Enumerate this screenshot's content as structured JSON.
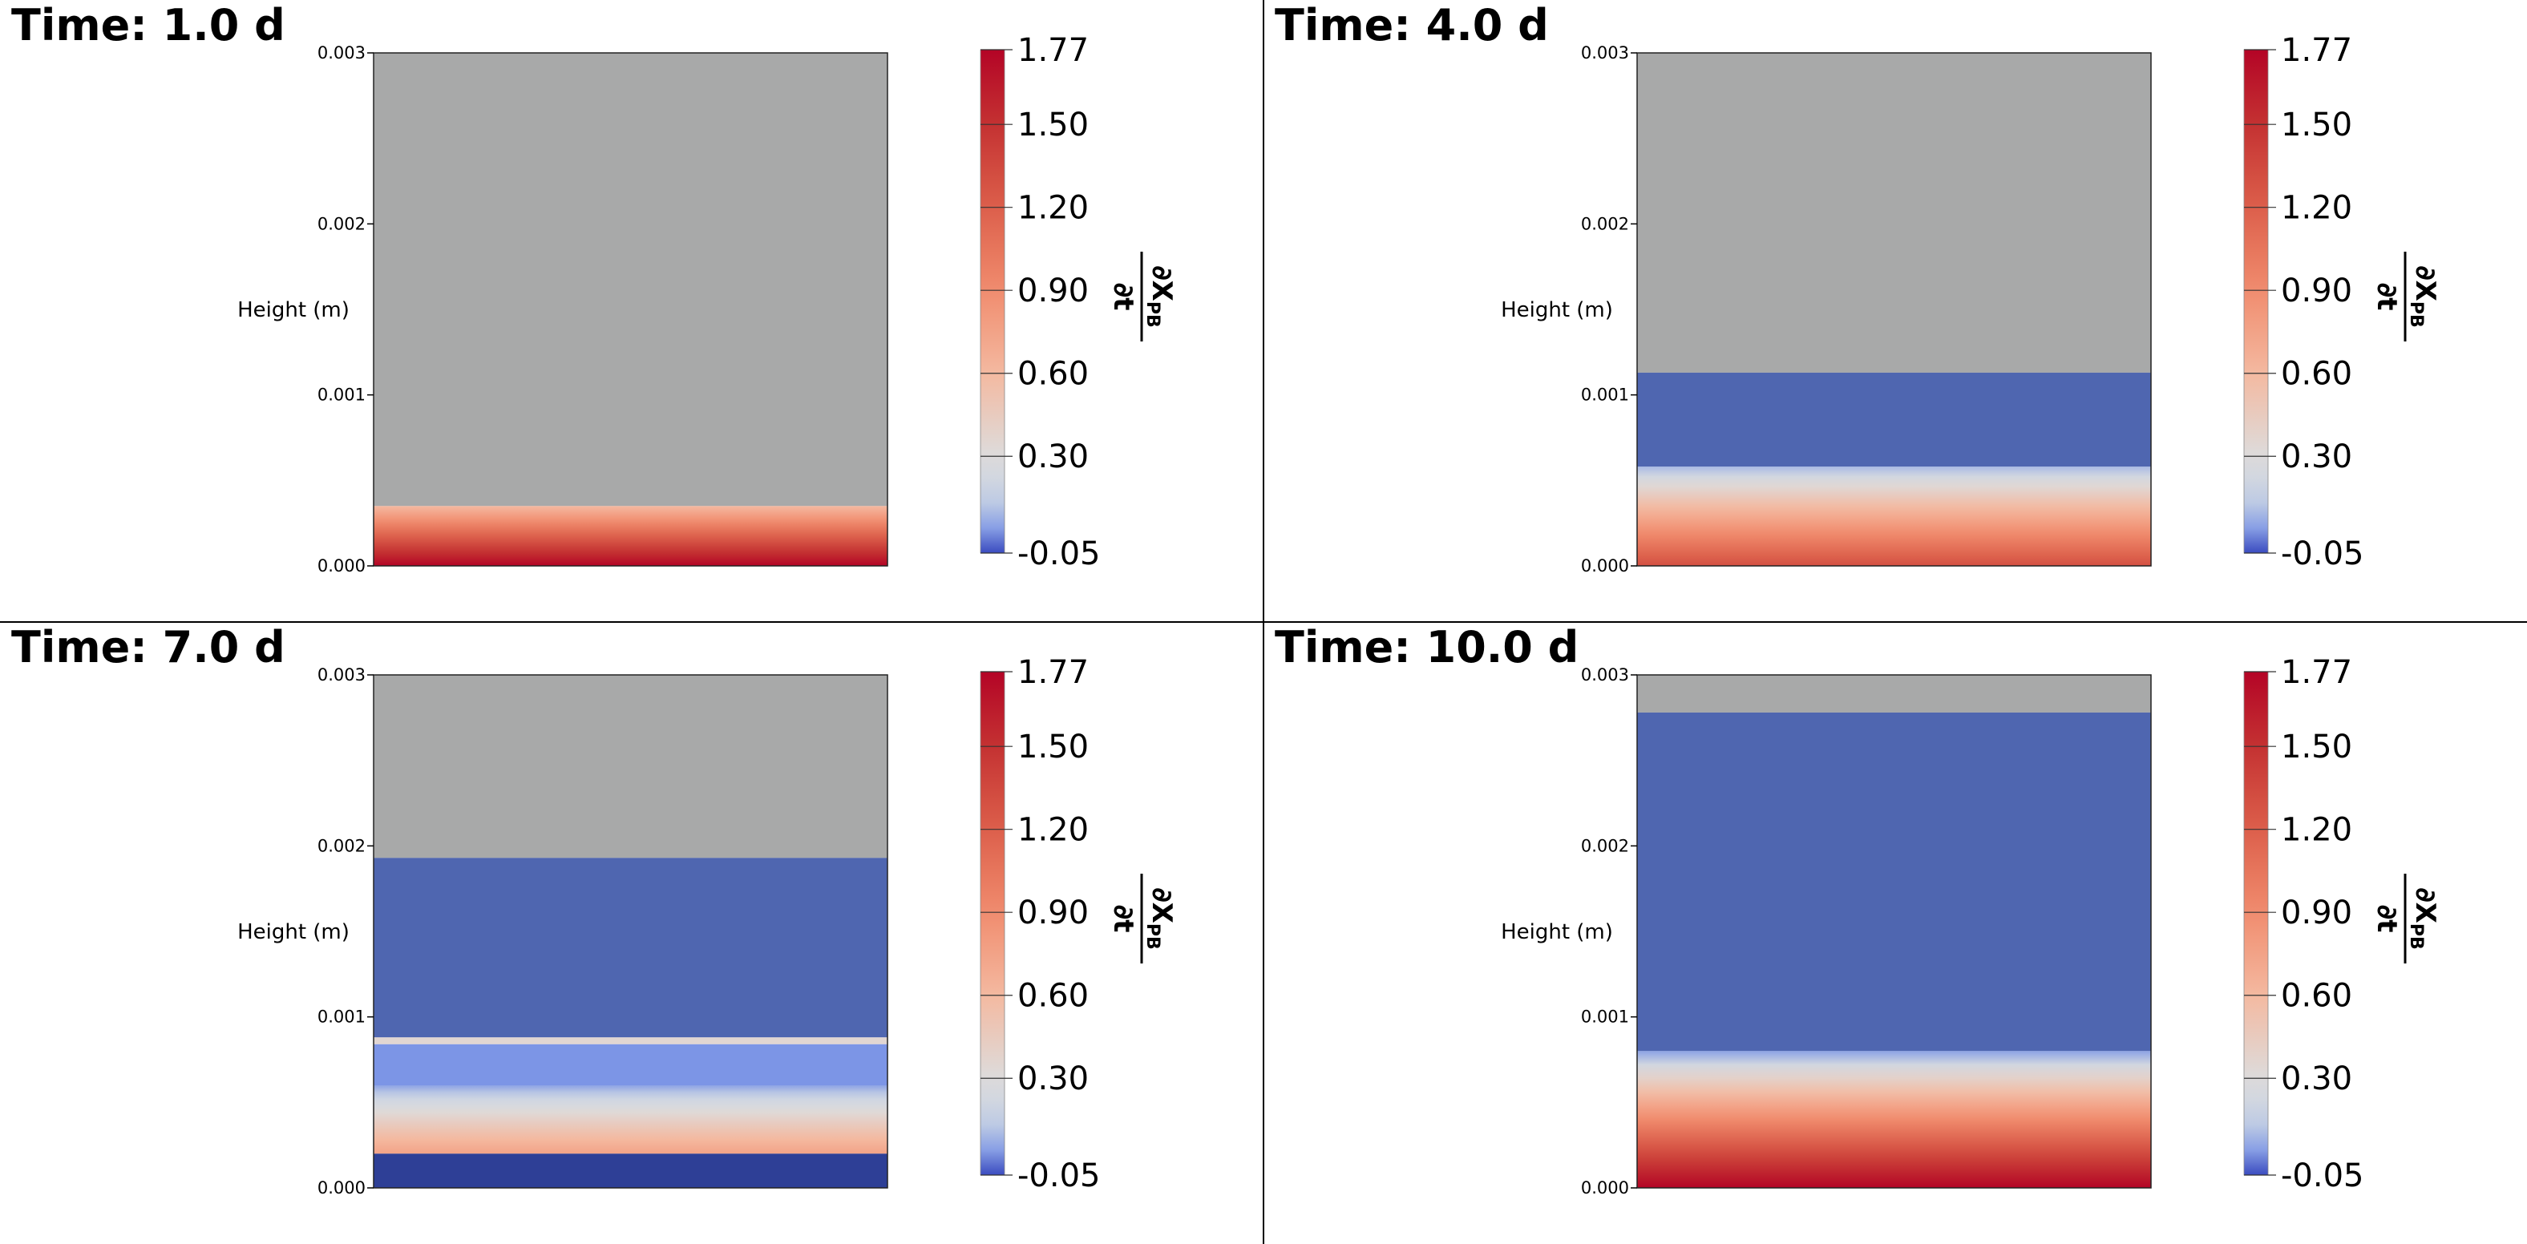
{
  "panels": [
    {
      "title": "Time: 1.0 d",
      "chart_data": {
        "type": "heatmap",
        "ylabel": "Height (m)",
        "yticks": [
          "0.000",
          "0.001",
          "0.002",
          "0.003"
        ],
        "ylim": [
          0,
          0.003
        ],
        "colorbar": {
          "label": "∂X_PB/∂t",
          "ticks": [
            "1.77",
            "1.50",
            "1.20",
            "0.90",
            "0.60",
            "0.30",
            "-0.05"
          ],
          "range": [
            -0.05,
            1.77
          ]
        },
        "layers": [
          {
            "y0": 0.00035,
            "y1": 0.003,
            "kind": "gray"
          },
          {
            "y0": 0.0,
            "y1": 0.00035,
            "kind": "gradient",
            "v_bottom": 1.77,
            "v_top": 0.6
          }
        ]
      }
    },
    {
      "title": "Time: 4.0 d",
      "chart_data": {
        "type": "heatmap",
        "ylabel": "Height (m)",
        "yticks": [
          "0.000",
          "0.001",
          "0.002",
          "0.003"
        ],
        "ylim": [
          0,
          0.003
        ],
        "colorbar": {
          "label": "∂X_PB/∂t",
          "ticks": [
            "1.77",
            "1.50",
            "1.20",
            "0.90",
            "0.60",
            "0.30",
            "-0.05"
          ],
          "range": [
            -0.05,
            1.77
          ]
        },
        "layers": [
          {
            "y0": 0.00113,
            "y1": 0.003,
            "kind": "gray"
          },
          {
            "y0": 0.00058,
            "y1": 0.00113,
            "kind": "value",
            "v": -0.05
          },
          {
            "y0": 0.0,
            "y1": 0.00058,
            "kind": "gradient",
            "v_bottom": 1.3,
            "v_top": 0.1
          }
        ]
      }
    },
    {
      "title": "Time: 7.0 d",
      "chart_data": {
        "type": "heatmap",
        "ylabel": "Height (m)",
        "yticks": [
          "0.000",
          "0.001",
          "0.002",
          "0.003"
        ],
        "ylim": [
          0,
          0.003
        ],
        "colorbar": {
          "label": "∂X_PB/∂t",
          "ticks": [
            "1.77",
            "1.50",
            "1.20",
            "0.90",
            "0.60",
            "0.30",
            "-0.05"
          ],
          "range": [
            -0.05,
            1.77
          ]
        },
        "layers": [
          {
            "y0": 0.00193,
            "y1": 0.003,
            "kind": "gray"
          },
          {
            "y0": 0.00088,
            "y1": 0.00193,
            "kind": "value",
            "v": -0.05
          },
          {
            "y0": 0.00084,
            "y1": 0.00088,
            "kind": "value",
            "v": 0.35
          },
          {
            "y0": 0.0006,
            "y1": 0.00084,
            "kind": "value",
            "v": 0.02
          },
          {
            "y0": 0.0002,
            "y1": 0.0006,
            "kind": "gradient",
            "v_bottom": 0.75,
            "v_top": 0.05
          },
          {
            "y0": 0.0,
            "y1": 0.0002,
            "kind": "dark"
          }
        ]
      }
    },
    {
      "title": "Time: 10.0 d",
      "chart_data": {
        "type": "heatmap",
        "ylabel": "Height (m)",
        "yticks": [
          "0.000",
          "0.001",
          "0.002",
          "0.003"
        ],
        "ylim": [
          0,
          0.003
        ],
        "colorbar": {
          "label": "∂X_PB/∂t",
          "ticks": [
            "1.77",
            "1.50",
            "1.20",
            "0.90",
            "0.60",
            "0.30",
            "-0.05"
          ],
          "range": [
            -0.05,
            1.77
          ]
        },
        "layers": [
          {
            "y0": 0.00278,
            "y1": 0.003,
            "kind": "gray"
          },
          {
            "y0": 0.0008,
            "y1": 0.00278,
            "kind": "value",
            "v": -0.05
          },
          {
            "y0": 0.0,
            "y1": 0.0008,
            "kind": "gradient",
            "v_bottom": 1.77,
            "v_top": 0.05
          }
        ]
      }
    }
  ]
}
